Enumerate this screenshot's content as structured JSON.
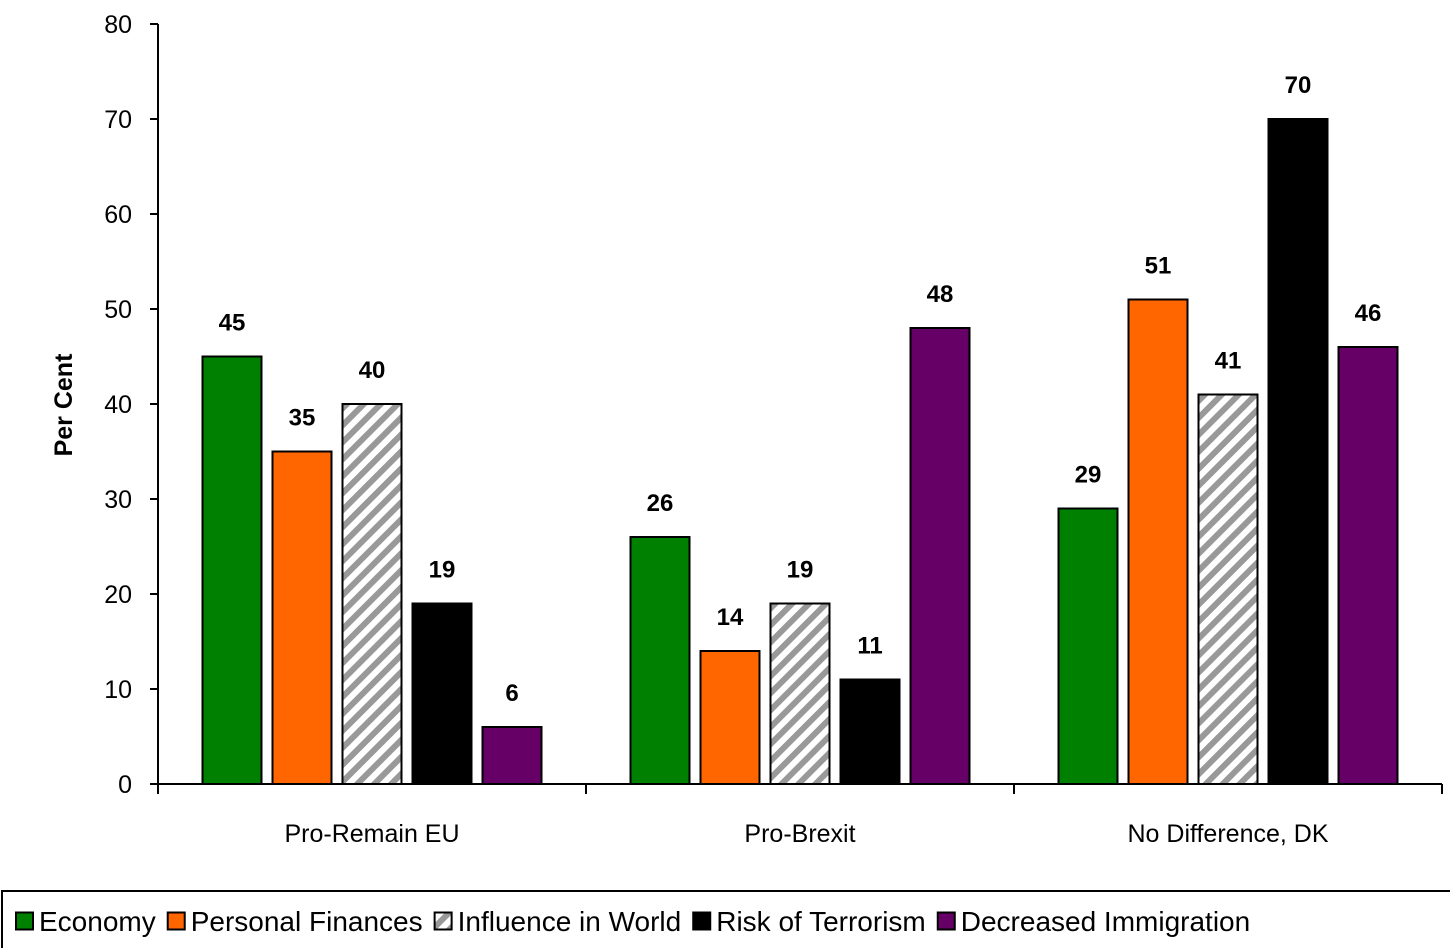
{
  "chart_data": {
    "type": "bar",
    "title": "",
    "xlabel": "",
    "ylabel": "Per Cent",
    "ylim": [
      0,
      80
    ],
    "yticks": [
      0,
      10,
      20,
      30,
      40,
      50,
      60,
      70,
      80
    ],
    "grid": false,
    "legend_position": "bottom",
    "categories": [
      "Pro-Remain EU",
      "Pro-Brexit",
      "No Difference, DK"
    ],
    "series": [
      {
        "name": "Economy",
        "values": [
          45,
          26,
          29
        ],
        "color": "#008000",
        "pattern": "solid"
      },
      {
        "name": "Personal Finances",
        "values": [
          35,
          14,
          51
        ],
        "color": "#ff6600",
        "pattern": "solid"
      },
      {
        "name": "Influence in World",
        "values": [
          40,
          19,
          41
        ],
        "color": "#999999",
        "pattern": "diagonal-stripes"
      },
      {
        "name": "Risk of Terrorism",
        "values": [
          19,
          11,
          70
        ],
        "color": "#000000",
        "pattern": "solid"
      },
      {
        "name": "Decreased Immigration",
        "values": [
          6,
          48,
          46
        ],
        "color": "#660066",
        "pattern": "solid"
      }
    ]
  }
}
